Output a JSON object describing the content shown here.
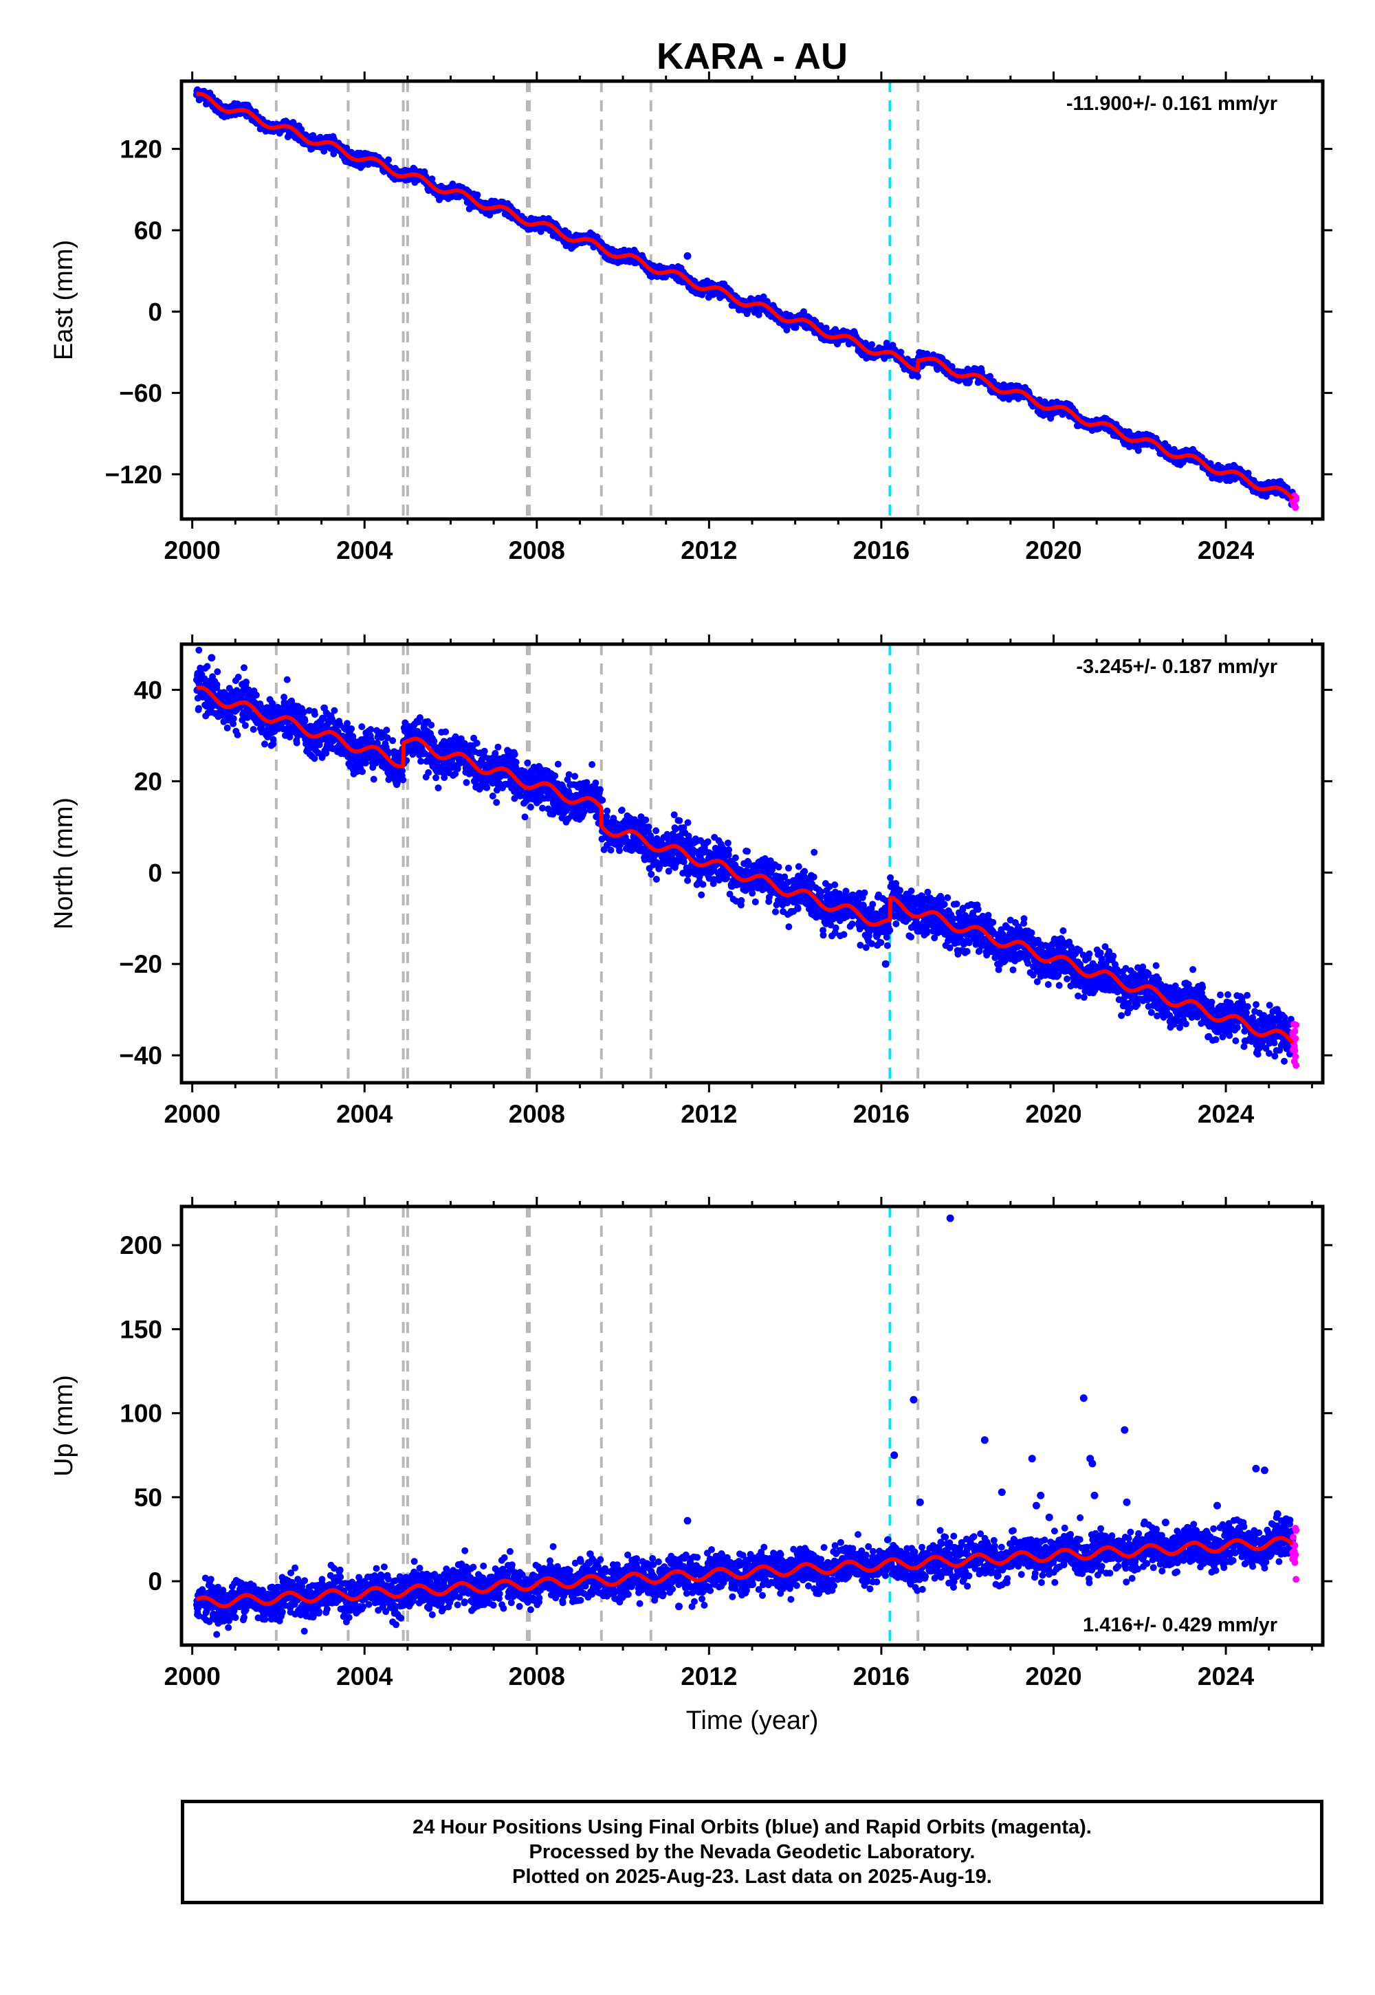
{
  "title": "KARA - AU",
  "xlabel": "Time (year)",
  "footer": {
    "line1": "24 Hour Positions Using Final Orbits (blue) and Rapid Orbits (magenta).",
    "line2": "Processed by the Nevada Geodetic Laboratory.",
    "line3": "Plotted on 2025-Aug-23. Last data on 2025-Aug-19."
  },
  "colors": {
    "final_orbits": "#0000ff",
    "rapid_orbits": "#ff00ff",
    "model_fit": "#ff0000",
    "event_gray": "#b8b8b8",
    "event_cyan": "#00e5ee"
  },
  "chart_data": [
    {
      "type": "scatter",
      "panel": "east",
      "ylabel": "East (mm)",
      "rate_text": "-11.900+/- 0.161 mm/yr",
      "xlim": [
        1999.75,
        2026.25
      ],
      "ylim": [
        -153,
        170
      ],
      "xticks": [
        2000,
        2004,
        2008,
        2012,
        2016,
        2020,
        2024
      ],
      "xtick_labels": [
        "2000",
        "2004",
        "2008",
        "2012",
        "2016",
        "2020",
        "2024"
      ],
      "yticks": [
        -120,
        -60,
        0,
        60,
        120
      ],
      "ytick_labels": [
        "−120",
        "−60",
        "0",
        "60",
        "120"
      ],
      "grid": false,
      "trend": {
        "rate_mm_per_yr": -11.9,
        "value_at_2000": 160
      },
      "offsets": [
        {
          "x": 2016.85,
          "dy": 7
        }
      ],
      "fit": {
        "color": "red",
        "annual_amplitude": 3
      },
      "final_range": [
        2000.1,
        2025.55
      ],
      "rapid_range": [
        2025.55,
        2025.63
      ],
      "scatter_sd": 2.2,
      "outliers": [
        {
          "x": 2011.5,
          "y": 41
        }
      ]
    },
    {
      "type": "scatter",
      "panel": "north",
      "ylabel": "North (mm)",
      "rate_text": "-3.245+/- 0.187 mm/yr",
      "xlim": [
        1999.75,
        2026.25
      ],
      "ylim": [
        -46,
        50
      ],
      "xticks": [
        2000,
        2004,
        2008,
        2012,
        2016,
        2020,
        2024
      ],
      "xtick_labels": [
        "2000",
        "2004",
        "2008",
        "2012",
        "2016",
        "2020",
        "2024"
      ],
      "yticks": [
        -40,
        -20,
        0,
        20,
        40
      ],
      "ytick_labels": [
        "−40",
        "−20",
        "0",
        "20",
        "40"
      ],
      "grid": false,
      "trend": {
        "rate_mm_per_yr": -3.245,
        "value_at_2000": 40
      },
      "offsets": [
        {
          "x": 2004.9,
          "dy": 5
        },
        {
          "x": 2009.5,
          "dy": -4
        },
        {
          "x": 2016.2,
          "dy": 5
        }
      ],
      "fit": {
        "color": "red",
        "annual_amplitude": 1.2
      },
      "final_range": [
        2000.1,
        2025.55
      ],
      "rapid_range": [
        2025.55,
        2025.63
      ],
      "scatter_sd": 2.3,
      "outliers": [
        {
          "x": 2000.45,
          "y": 47
        },
        {
          "x": 2016.1,
          "y": -20
        }
      ]
    },
    {
      "type": "scatter",
      "panel": "up",
      "ylabel": "Up (mm)",
      "rate_text": "1.416+/- 0.429 mm/yr",
      "xlim": [
        1999.75,
        2026.25
      ],
      "ylim": [
        -38,
        223
      ],
      "xticks": [
        2000,
        2004,
        2008,
        2012,
        2016,
        2020,
        2024
      ],
      "xtick_labels": [
        "2000",
        "2004",
        "2008",
        "2012",
        "2016",
        "2020",
        "2024"
      ],
      "yticks": [
        0,
        50,
        100,
        150,
        200
      ],
      "ytick_labels": [
        "0",
        "50",
        "100",
        "150",
        "200"
      ],
      "grid": false,
      "trend": {
        "rate_mm_per_yr": 1.416,
        "value_at_2000": -13
      },
      "offsets": [],
      "fit": {
        "color": "red",
        "annual_amplitude": 3
      },
      "final_range": [
        2000.1,
        2025.55
      ],
      "rapid_range": [
        2025.55,
        2025.63
      ],
      "scatter_sd": 5.5,
      "outliers": [
        {
          "x": 2017.6,
          "y": 216
        },
        {
          "x": 2016.75,
          "y": 108
        },
        {
          "x": 2016.3,
          "y": 75
        },
        {
          "x": 2016.9,
          "y": 47
        },
        {
          "x": 2018.4,
          "y": 84
        },
        {
          "x": 2018.8,
          "y": 53
        },
        {
          "x": 2019.5,
          "y": 73
        },
        {
          "x": 2019.7,
          "y": 51
        },
        {
          "x": 2019.6,
          "y": 45
        },
        {
          "x": 2019.9,
          "y": 38
        },
        {
          "x": 2020.7,
          "y": 109
        },
        {
          "x": 2020.85,
          "y": 73
        },
        {
          "x": 2020.9,
          "y": 70
        },
        {
          "x": 2020.95,
          "y": 51
        },
        {
          "x": 2021.65,
          "y": 90
        },
        {
          "x": 2021.7,
          "y": 47
        },
        {
          "x": 2022.6,
          "y": 35
        },
        {
          "x": 2023.8,
          "y": 45
        },
        {
          "x": 2024.7,
          "y": 67
        },
        {
          "x": 2024.9,
          "y": 66
        },
        {
          "x": 2011.5,
          "y": 36
        },
        {
          "x": 2011.3,
          "y": -15
        },
        {
          "x": 2025.2,
          "y": 40
        },
        {
          "x": 2025.4,
          "y": 37
        }
      ]
    }
  ],
  "events": {
    "gray_years": [
      2001.95,
      2003.62,
      2004.9,
      2005.0,
      2007.78,
      2007.83,
      2009.5,
      2010.65,
      2016.85
    ],
    "cyan_years": [
      2016.2
    ]
  }
}
